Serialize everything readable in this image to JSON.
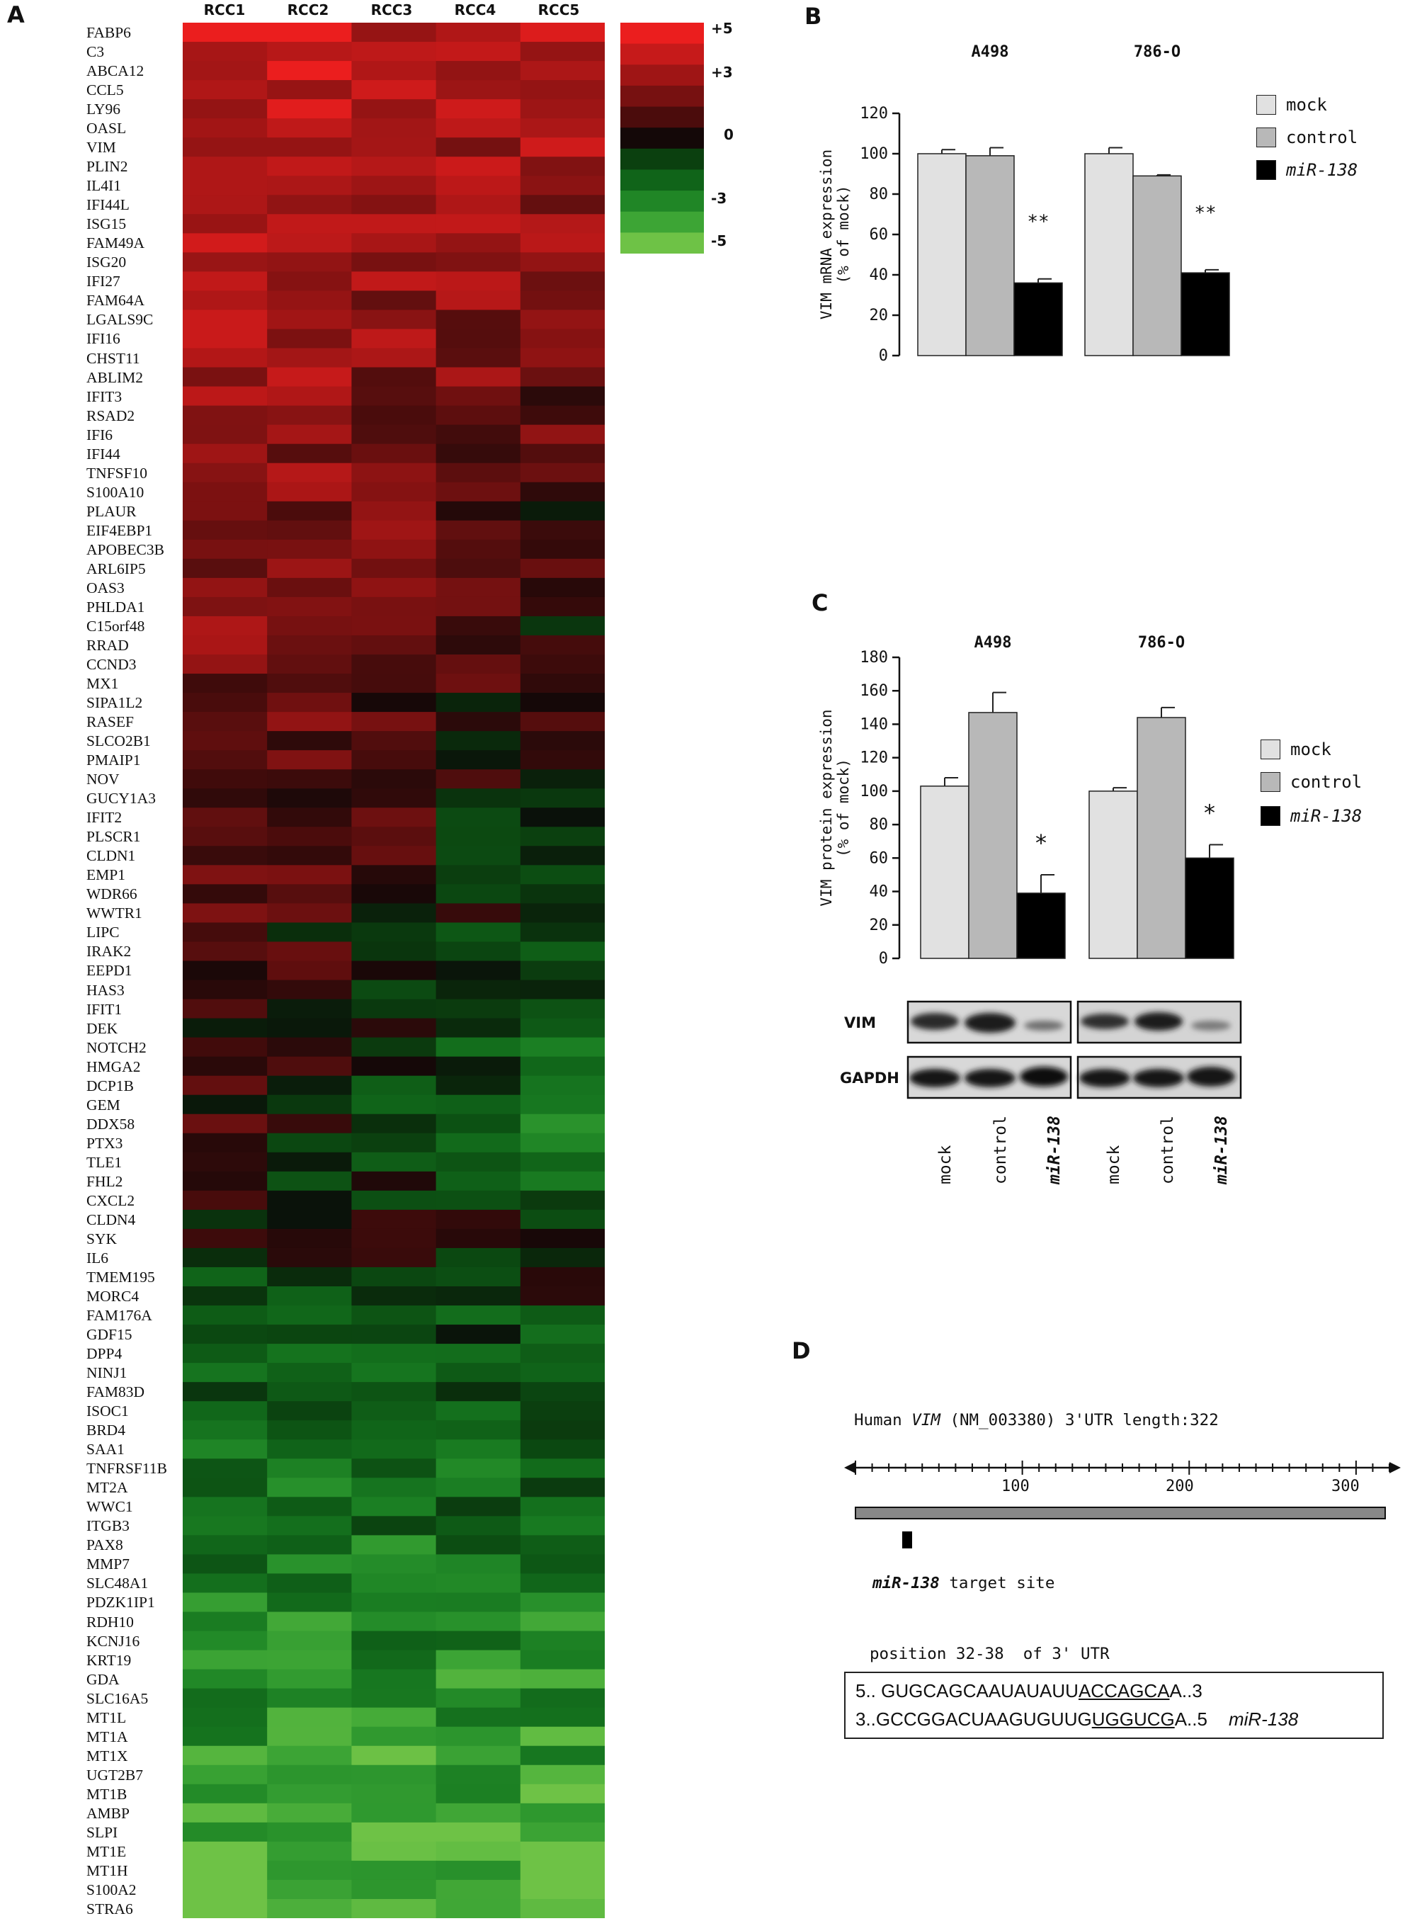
{
  "panel_labels": {
    "a": "A",
    "b": "B",
    "c": "C",
    "d": "D"
  },
  "heatmap": {
    "columns": [
      "RCC1",
      "RCC2",
      "RCC3",
      "RCC4",
      "RCC5"
    ],
    "scale_labels": [
      "+5",
      "+3",
      "0",
      "-3",
      "-5"
    ],
    "genes": [
      "FABP6",
      "C3",
      "ABCA12",
      "CCL5",
      "LY96",
      "OASL",
      "VIM",
      "PLIN2",
      "IL4I1",
      "IFI44L",
      "ISG15",
      "FAM49A",
      "ISG20",
      "IFI27",
      "FAM64A",
      "LGALS9C",
      "IFI16",
      "CHST11",
      "ABLIM2",
      "IFIT3",
      "RSAD2",
      "IFI6",
      "IFI44",
      "TNFSF10",
      "S100A10",
      "PLAUR",
      "EIF4EBP1",
      "APOBEC3B",
      "ARL6IP5",
      "OAS3",
      "PHLDA1",
      "C15orf48",
      "RRAD",
      "CCND3",
      "MX1",
      "SIPA1L2",
      "RASEF",
      "SLCO2B1",
      "PMAIP1",
      "NOV",
      "GUCY1A3",
      "IFIT2",
      "PLSCR1",
      "CLDN1",
      "EMP1",
      "WDR66",
      "WWTR1",
      "LIPC",
      "IRAK2",
      "EEPD1",
      "HAS3",
      "IFIT1",
      "DEK",
      "NOTCH2",
      "HMGA2",
      "DCP1B",
      "GEM",
      "DDX58",
      "PTX3",
      "TLE1",
      "FHL2",
      "CXCL2",
      "CLDN4",
      "SYK",
      "IL6",
      "TMEM195",
      "MORC4",
      "FAM176A",
      "GDF15",
      "DPP4",
      "NINJ1",
      "FAM83D",
      "ISOC1",
      "BRD4",
      "SAA1",
      "TNFRSF11B",
      "MT2A",
      "WWC1",
      "ITGB3",
      "PAX8",
      "MMP7",
      "SLC48A1",
      "PDZK1IP1",
      "RDH10",
      "KCNJ16",
      "KRT19",
      "GDA",
      "SLC16A5",
      "MT1L",
      "MT1A",
      "MT1X",
      "UGT2B7",
      "MT1B",
      "AMBP",
      "SLPI",
      "MT1E",
      "MT1H",
      "S100A2",
      "STRA6"
    ]
  },
  "chart_data": [
    {
      "type": "bar",
      "panel": "B",
      "groups": [
        "A498",
        "786-O"
      ],
      "series": [
        {
          "name": "mock",
          "values": [
            100,
            100
          ],
          "errors": [
            2,
            3
          ],
          "color": "#e1e1e1"
        },
        {
          "name": "control",
          "values": [
            99,
            89
          ],
          "errors": [
            4,
            0.5
          ],
          "color": "#b8b8b8"
        },
        {
          "name": "miR-138",
          "values": [
            36,
            41
          ],
          "errors": [
            2,
            1.5
          ],
          "color": "#000000"
        }
      ],
      "annotations": [
        "**",
        "**"
      ],
      "ylabel_line1": "VIM mRNA expression",
      "ylabel_line2": "(% of mock)",
      "ylim": [
        0,
        120
      ],
      "yticks": [
        0,
        20,
        40,
        60,
        80,
        100,
        120
      ]
    },
    {
      "type": "bar",
      "panel": "C",
      "groups": [
        "A498",
        "786-O"
      ],
      "series": [
        {
          "name": "mock",
          "values": [
            103,
            100
          ],
          "errors": [
            5,
            2
          ],
          "color": "#e1e1e1"
        },
        {
          "name": "control",
          "values": [
            147,
            144
          ],
          "errors": [
            12,
            6
          ],
          "color": "#b8b8b8"
        },
        {
          "name": "miR-138",
          "values": [
            39,
            60
          ],
          "errors": [
            11,
            8
          ],
          "color": "#000000"
        }
      ],
      "annotations": [
        "*",
        "*"
      ],
      "ylabel_line1": "VIM protein expression",
      "ylabel_line2": "(% of mock)",
      "ylim": [
        0,
        180
      ],
      "yticks": [
        0,
        20,
        40,
        60,
        80,
        100,
        120,
        140,
        160,
        180
      ]
    }
  ],
  "western": {
    "rows": [
      "VIM",
      "GAPDH"
    ],
    "lanes": [
      "mock",
      "control",
      "miR-138",
      "mock",
      "control",
      "miR-138"
    ]
  },
  "legend": {
    "mock": "mock",
    "control": "control",
    "mir": "miR-138"
  },
  "panel_d": {
    "title_prefix": "Human ",
    "title_gene": "VIM",
    "title_rest": " (NM_003380) 3'UTR length:322",
    "scale_ticks": [
      "100",
      "200",
      "300"
    ],
    "target_label_mir": "miR-138",
    "target_label_rest": " target site",
    "position_label": "position 32-38  of 3' UTR",
    "seq1_pre": "5.. GUGCAGCAAUAUAUU",
    "seq1_under": "ACCAGCA",
    "seq1_post": "A..3",
    "seq2_pre": "3..GCCGGACUAAGUGUUG",
    "seq2_under": "UGGUCG",
    "seq2_post": "A..5",
    "seq2_mir": "miR-138"
  }
}
